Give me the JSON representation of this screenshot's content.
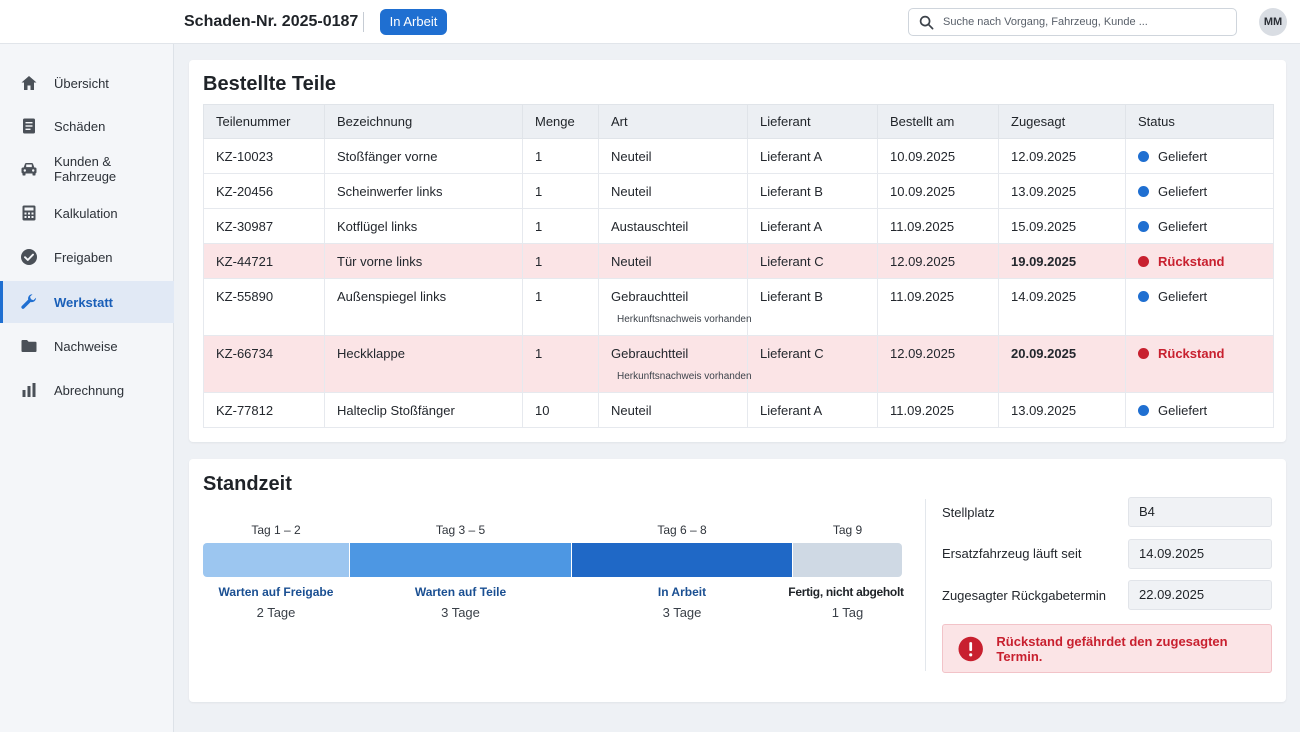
{
  "header": {
    "case_title": "Schaden-Nr. 2025-0187",
    "status_label": "In Arbeit",
    "search_placeholder": "Suche nach Vorgang, Fahrzeug, Kunde ...",
    "avatar_initials": "MM",
    "accent_color": "#1f6fd1"
  },
  "sidebar": {
    "items": [
      {
        "label": "Übersicht",
        "icon": "home-icon"
      },
      {
        "label": "Schäden",
        "icon": "document-icon"
      },
      {
        "label": "Kunden & Fahrzeuge",
        "icon": "car-icon"
      },
      {
        "label": "Kalkulation",
        "icon": "calculator-icon"
      },
      {
        "label": "Freigaben",
        "icon": "check-circle-icon"
      },
      {
        "label": "Werkstatt",
        "icon": "wrench-icon",
        "active": true
      },
      {
        "label": "Nachweise",
        "icon": "folder-icon"
      },
      {
        "label": "Abrechnung",
        "icon": "bar-chart-icon"
      }
    ]
  },
  "parts": {
    "title": "Bestellte Teile",
    "columns": [
      "Teilenummer",
      "Bezeichnung",
      "Menge",
      "Art",
      "Lieferant",
      "Bestellt am",
      "Zugesagt",
      "Status"
    ],
    "rows": [
      {
        "nr": "KZ-10023",
        "name": "Stoßfänger vorne",
        "qty": "1",
        "type": "Neuteil",
        "supplier": "Lieferant A",
        "ordered": "10.09.2025",
        "promised": "12.09.2025",
        "status": "Geliefert"
      },
      {
        "nr": "KZ-20456",
        "name": "Scheinwerfer links",
        "qty": "1",
        "type": "Neuteil",
        "supplier": "Lieferant B",
        "ordered": "10.09.2025",
        "promised": "13.09.2025",
        "status": "Geliefert"
      },
      {
        "nr": "KZ-30987",
        "name": "Kotflügel links",
        "qty": "1",
        "type": "Austauschteil",
        "supplier": "Lieferant A",
        "ordered": "11.09.2025",
        "promised": "15.09.2025",
        "status": "Geliefert"
      },
      {
        "nr": "KZ-44721",
        "name": "Tür vorne links",
        "qty": "1",
        "type": "Neuteil",
        "supplier": "Lieferant C",
        "ordered": "12.09.2025",
        "promised": "19.09.2025",
        "status": "Rückstand"
      },
      {
        "nr": "KZ-55890",
        "name": "Außenspiegel links",
        "qty": "1",
        "type": "Gebrauchtteil",
        "note": "Herkunftsnachweis vorhanden",
        "supplier": "Lieferant B",
        "ordered": "11.09.2025",
        "promised": "14.09.2025",
        "status": "Geliefert"
      },
      {
        "nr": "KZ-66734",
        "name": "Heckklappe",
        "qty": "1",
        "type": "Gebrauchtteil",
        "note": "Herkunftsnachweis vorhanden",
        "supplier": "Lieferant C",
        "ordered": "12.09.2025",
        "promised": "20.09.2025",
        "status": "Rückstand"
      },
      {
        "nr": "KZ-77812",
        "name": "Halteclip Stoßfänger",
        "qty": "10",
        "type": "Neuteil",
        "supplier": "Lieferant A",
        "ordered": "11.09.2025",
        "promised": "13.09.2025",
        "status": "Geliefert"
      }
    ],
    "status_colors": {
      "Geliefert": "#1f6fd1",
      "Rückstand": "#c8202f"
    }
  },
  "standzeit": {
    "title": "Standzeit",
    "phases": [
      {
        "days_label": "Tag 1 – 2",
        "name": "Warten auf Freigabe",
        "duration": "2 Tage",
        "days": 2,
        "color": "#9cc6f0"
      },
      {
        "days_label": "Tag 3 – 5",
        "name": "Warten auf Teile",
        "duration": "3 Tage",
        "days": 3,
        "color": "#4d97e3"
      },
      {
        "days_label": "Tag 6 – 8",
        "name": "In Arbeit",
        "duration": "3 Tage",
        "days": 3,
        "color": "#1f68c6"
      },
      {
        "days_label": "Tag 9",
        "name": "Fertig, nicht abgeholt",
        "duration": "1 Tag",
        "days": 1,
        "color": "#cfd9e4"
      }
    ],
    "info": {
      "stellplatz_label": "Stellplatz",
      "stellplatz_value": "B4",
      "ersatz_label": "Ersatzfahrzeug läuft seit",
      "ersatz_value": "14.09.2025",
      "rueckgabe_label": "Zugesagter Rückgabetermin",
      "rueckgabe_value": "22.09.2025"
    },
    "alert": "Rückstand gefährdet den zugesagten Termin."
  }
}
